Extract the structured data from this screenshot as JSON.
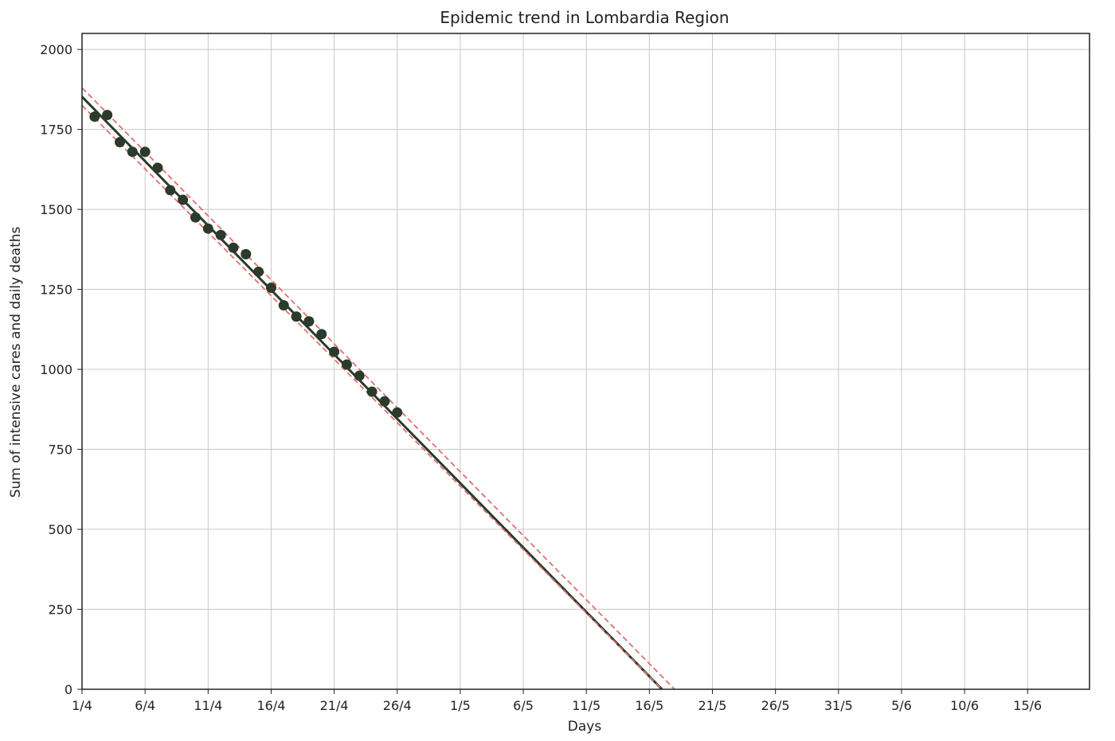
{
  "chart_data": {
    "type": "line",
    "title": "Epidemic trend in Lombardia Region",
    "xlabel": "Days",
    "ylabel": "Sum of intensive cares and daily deaths",
    "x_unit": "date (day/month)",
    "xlim": [
      "2020-04-01",
      "2020-06-20"
    ],
    "ylim": [
      0,
      2050
    ],
    "x_ticks": [
      "1/4",
      "6/4",
      "11/4",
      "16/4",
      "21/4",
      "26/4",
      "1/5",
      "6/5",
      "11/5",
      "16/5",
      "21/5",
      "26/5",
      "31/5",
      "5/6",
      "10/6",
      "15/6"
    ],
    "y_ticks": [
      0,
      250,
      500,
      750,
      1000,
      1250,
      1500,
      1750,
      2000
    ],
    "grid": true,
    "series": [
      {
        "kind": "scatter",
        "color": "#2b3a2b",
        "points": [
          {
            "x": "2/4",
            "y": 1790
          },
          {
            "x": "3/4",
            "y": 1795
          },
          {
            "x": "4/4",
            "y": 1710
          },
          {
            "x": "5/4",
            "y": 1680
          },
          {
            "x": "6/4",
            "y": 1680
          },
          {
            "x": "7/4",
            "y": 1630
          },
          {
            "x": "8/4",
            "y": 1560
          },
          {
            "x": "9/4",
            "y": 1530
          },
          {
            "x": "10/4",
            "y": 1475
          },
          {
            "x": "11/4",
            "y": 1440
          },
          {
            "x": "12/4",
            "y": 1420
          },
          {
            "x": "13/4",
            "y": 1380
          },
          {
            "x": "14/4",
            "y": 1360
          },
          {
            "x": "15/4",
            "y": 1305
          },
          {
            "x": "16/4",
            "y": 1255
          },
          {
            "x": "17/4",
            "y": 1200
          },
          {
            "x": "18/4",
            "y": 1165
          },
          {
            "x": "19/4",
            "y": 1150
          },
          {
            "x": "20/4",
            "y": 1110
          },
          {
            "x": "21/4",
            "y": 1055
          },
          {
            "x": "22/4",
            "y": 1015
          },
          {
            "x": "23/4",
            "y": 980
          },
          {
            "x": "24/4",
            "y": 930
          },
          {
            "x": "25/4",
            "y": 900
          },
          {
            "x": "26/4",
            "y": 865
          }
        ]
      },
      {
        "kind": "line",
        "style": "solid",
        "color": "#2b3a2b",
        "points": [
          {
            "x": "1/4",
            "y": 1852
          },
          {
            "x": "17/5",
            "y": 0
          }
        ]
      },
      {
        "kind": "line",
        "style": "dashed",
        "color": "#e07070",
        "points": [
          {
            "x": "1/4",
            "y": 1880
          },
          {
            "x": "18/5",
            "y": 0
          }
        ]
      },
      {
        "kind": "line",
        "style": "dashed",
        "color": "#e07070",
        "points": [
          {
            "x": "1/4",
            "y": 1825
          },
          {
            "x": "17/5",
            "y": 0
          }
        ]
      }
    ]
  },
  "colors": {
    "grid": "#c8c8c8",
    "frame": "#222222"
  }
}
